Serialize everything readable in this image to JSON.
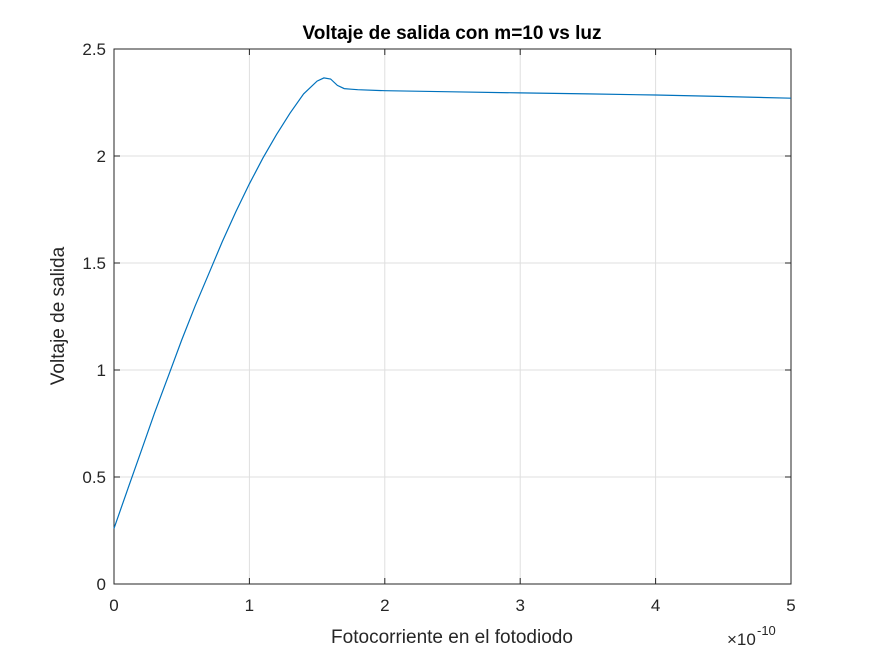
{
  "chart_data": {
    "type": "line",
    "title": "Voltaje de salida con m=10 vs luz",
    "xlabel": "Fotocorriente en el fotodiodo",
    "ylabel": "Voltaje de salida",
    "x_exponent_label": "×10",
    "x_exponent_power": "-10",
    "xlim": [
      0,
      5
    ],
    "ylim": [
      0,
      2.5
    ],
    "xticks": [
      "0",
      "1",
      "2",
      "3",
      "4",
      "5"
    ],
    "yticks": [
      "0",
      "0.5",
      "1",
      "1.5",
      "2",
      "2.5"
    ],
    "grid": true,
    "series": [
      {
        "color": "#0072BD",
        "x": [
          0,
          0.1,
          0.2,
          0.3,
          0.4,
          0.5,
          0.6,
          0.7,
          0.8,
          0.9,
          1.0,
          1.1,
          1.2,
          1.3,
          1.4,
          1.5,
          1.55,
          1.6,
          1.65,
          1.7,
          1.75,
          1.8,
          2.0,
          2.5,
          3.0,
          3.5,
          4.0,
          4.5,
          5.0
        ],
        "y": [
          0.26,
          0.44,
          0.62,
          0.8,
          0.97,
          1.14,
          1.3,
          1.45,
          1.6,
          1.74,
          1.87,
          1.99,
          2.1,
          2.2,
          2.29,
          2.35,
          2.365,
          2.36,
          2.33,
          2.315,
          2.312,
          2.31,
          2.305,
          2.3,
          2.295,
          2.29,
          2.285,
          2.278,
          2.27
        ]
      }
    ]
  }
}
